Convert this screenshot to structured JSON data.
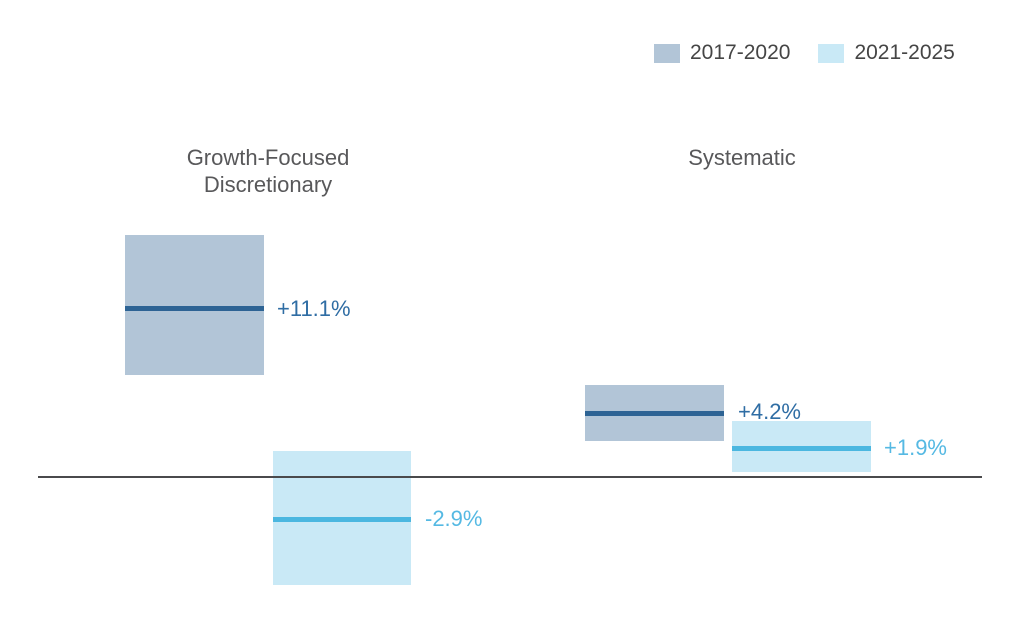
{
  "legend": {
    "position": "top-right",
    "items": [
      {
        "label": "2017-2020",
        "color": "#b2c5d7"
      },
      {
        "label": "2021-2025",
        "color": "#c9e9f6"
      }
    ]
  },
  "groups": [
    {
      "line1": "Growth-Focused",
      "line2": "Discretionary"
    },
    {
      "line1": "Systematic"
    }
  ],
  "colors": {
    "early_fill": "#b2c5d7",
    "early_midline": "#2d6394",
    "early_label_text": "#2f6da4",
    "late_fill": "#c9e9f6",
    "late_midline": "#4bb7e0",
    "late_label_text": "#55b9e3",
    "baseline": "#4a4a4c",
    "category_text": "#58585a",
    "legend_text": "#454545",
    "background": "#ffffff"
  },
  "chart_data": {
    "type": "bar",
    "subtype": "floating-range-bars-with-midline",
    "title": "",
    "xlabel": "",
    "ylabel": "",
    "categories": [
      "Growth-Focused Discretionary",
      "Systematic"
    ],
    "baseline_value": 0,
    "grid": false,
    "axes_visible": false,
    "legend_position": "top-right",
    "unit": "percent",
    "series": [
      {
        "name": "2017-2020",
        "fill_color": "#b2c5d7",
        "midline_color": "#2d6394",
        "values": [
          {
            "category": "Growth-Focused Discretionary",
            "midpoint_pct": 11.1,
            "label": "+11.1%",
            "range_high_pct_est": 16.0,
            "range_low_pct_est": 6.8
          },
          {
            "category": "Systematic",
            "midpoint_pct": 4.2,
            "label": "+4.2%",
            "range_high_pct_est": 6.1,
            "range_low_pct_est": 2.4
          }
        ]
      },
      {
        "name": "2021-2025",
        "fill_color": "#c9e9f6",
        "midline_color": "#4bb7e0",
        "values": [
          {
            "category": "Growth-Focused Discretionary",
            "midpoint_pct": -2.9,
            "label": "-2.9%",
            "range_high_pct_est": 1.7,
            "range_low_pct_est": -7.2
          },
          {
            "category": "Systematic",
            "midpoint_pct": 1.9,
            "label": "+1.9%",
            "range_high_pct_est": 3.7,
            "range_low_pct_est": 0.3
          }
        ]
      }
    ]
  }
}
